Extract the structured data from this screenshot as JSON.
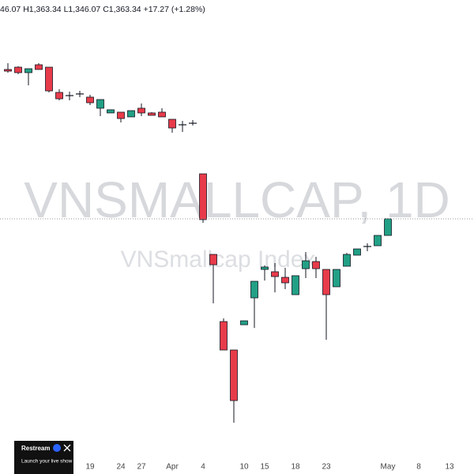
{
  "chart_data": {
    "type": "candlestick",
    "ohlc_readout": "46.07 H1,363.34 L1,346.07 C1,363.34 +17.27 (+1.28%)",
    "watermark_title": "VNSMALLCAP, 1D",
    "watermark_subtitle": "VNSmallcap Index",
    "categories": [
      null,
      null,
      null,
      null,
      null,
      null,
      null,
      null,
      "19",
      null,
      null,
      "24",
      null,
      "27",
      null,
      null,
      "Apr",
      null,
      null,
      "4",
      null,
      null,
      null,
      "10",
      null,
      "15",
      null,
      null,
      "18",
      null,
      null,
      "23",
      null,
      null,
      null,
      null,
      null,
      "May",
      null,
      null,
      "8",
      null,
      null,
      "13"
    ],
    "open": [
      1518.3,
      1520.7,
      1515.0,
      1523.2,
      1520.7,
      1494.5,
      1491.2,
      1492.9,
      1489.6,
      1478.1,
      1473.2,
      1474.0,
      1469.1,
      1478.1,
      1473.2,
      1474.0,
      1466.6,
      1460.9,
      1462.5,
      1410.0,
      1326.4,
      1256.7,
      1227.2,
      1253.4,
      1281.3,
      1310.8,
      1308.4,
      1302.6,
      1284.6,
      1311.6,
      1319.0,
      1310.8,
      1292.8,
      1314.1,
      1325.6,
      1334.6,
      1335.4,
      1346.07,
      null,
      null,
      null,
      null,
      null,
      null
    ],
    "high": [
      1524.8,
      1521.6,
      1519.1,
      1524.8,
      1520.7,
      1497.8,
      1495.3,
      1496.1,
      1492.0,
      1487.1,
      1476.5,
      1474.0,
      1475.6,
      1483.0,
      1474.0,
      1478.1,
      1466.6,
      1465.0,
      1465.8,
      1410.0,
      1326.4,
      1260.0,
      1227.2,
      1257.5,
      1298.5,
      1314.9,
      1317.4,
      1312.5,
      1304.3,
      1328.9,
      1323.9,
      1310.8,
      1310.8,
      1328.0,
      1332.1,
      1337.9,
      1346.1,
      1363.34,
      null,
      null,
      null,
      null,
      null,
      null
    ],
    "low": [
      1515.0,
      1513.4,
      1501.9,
      1518.3,
      1494.5,
      1486.3,
      1486.3,
      1489.6,
      1481.4,
      1469.9,
      1473.2,
      1463.3,
      1469.1,
      1469.9,
      1470.7,
      1469.1,
      1452.7,
      1453.5,
      1460.1,
      1359.2,
      1275.6,
      1227.2,
      1151.7,
      1253.4,
      1250.1,
      1299.3,
      1287.0,
      1290.3,
      1284.6,
      1301.8,
      1301.8,
      1237.8,
      1292.8,
      1314.1,
      1325.6,
      1329.7,
      1335.4,
      1346.07,
      null,
      null,
      null,
      null,
      null,
      null
    ],
    "close": [
      1516.6,
      1515.0,
      1519.1,
      1518.3,
      1496.1,
      1487.9,
      1491.2,
      1492.9,
      1483.8,
      1487.1,
      1476.5,
      1467.4,
      1475.6,
      1473.2,
      1470.7,
      1469.1,
      1457.6,
      1460.9,
      1462.5,
      1362.5,
      1315.7,
      1227.2,
      1174.7,
      1257.5,
      1298.5,
      1313.3,
      1303.4,
      1296.9,
      1304.3,
      1319.8,
      1311.6,
      1284.6,
      1310.8,
      1326.4,
      1332.1,
      1334.6,
      1346.1,
      1363.34,
      null,
      null,
      null,
      null,
      null,
      null
    ],
    "up_color": "#22a085",
    "down_color": "#e83b4a",
    "ylim": [
      1114.9,
      1590.4
    ],
    "ad": {
      "title": "Restream",
      "text": "Launch your live show on X"
    }
  }
}
